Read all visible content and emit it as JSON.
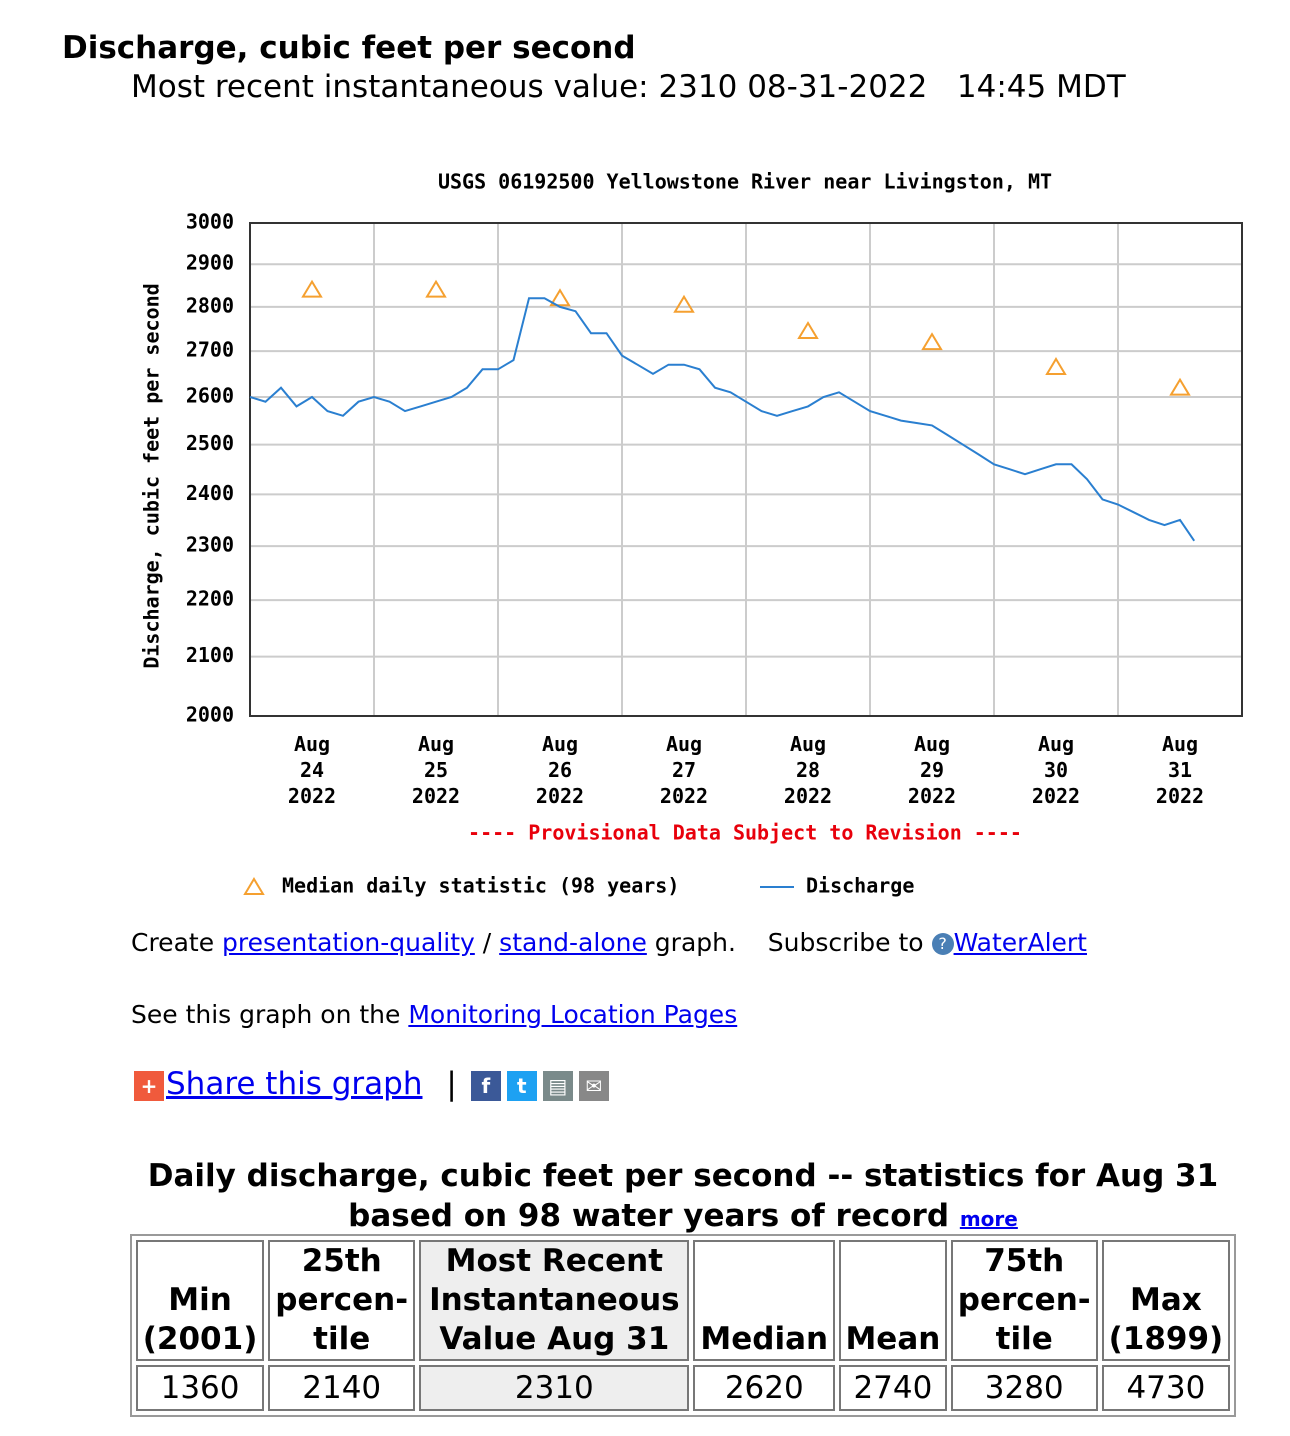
{
  "header": {
    "title": "Discharge, cubic feet per second",
    "subtitle": "Most recent instantaneous value: 2310 08-31-2022   14:45 MDT"
  },
  "chart_data": {
    "type": "line",
    "title": "USGS 06192500 Yellowstone River near Livingston, MT",
    "ylabel": "Discharge, cubic feet per second",
    "note": "---- Provisional Data Subject to Revision ----",
    "yscale": "log",
    "ylim": [
      2000,
      3000
    ],
    "yticks": [
      2000,
      2100,
      2200,
      2300,
      2400,
      2500,
      2600,
      2700,
      2800,
      2900,
      3000
    ],
    "xlim": [
      "2022-08-24T00:00",
      "2022-09-01T00:00"
    ],
    "xticks": [
      {
        "value": "2022-08-24T00:00",
        "label": "Aug 24 2022"
      },
      {
        "value": "2022-08-25T00:00",
        "label": "Aug 25 2022"
      },
      {
        "value": "2022-08-26T00:00",
        "label": "Aug 26 2022"
      },
      {
        "value": "2022-08-27T00:00",
        "label": "Aug 27 2022"
      },
      {
        "value": "2022-08-28T00:00",
        "label": "Aug 28 2022"
      },
      {
        "value": "2022-08-29T00:00",
        "label": "Aug 29 2022"
      },
      {
        "value": "2022-08-30T00:00",
        "label": "Aug 30 2022"
      },
      {
        "value": "2022-08-31T00:00",
        "label": "Aug 31 2022"
      }
    ],
    "grid": true,
    "series": [
      {
        "name": "Median daily statistic (98 years)",
        "color": "#f5a030",
        "marker": "triangle",
        "x": [
          "2022-08-24T12:00",
          "2022-08-25T12:00",
          "2022-08-26T12:00",
          "2022-08-27T12:00",
          "2022-08-28T12:00",
          "2022-08-29T12:00",
          "2022-08-30T12:00",
          "2022-08-31T12:00"
        ],
        "values": [
          2840,
          2840,
          2820,
          2805,
          2745,
          2720,
          2665,
          2620
        ]
      },
      {
        "name": "Discharge",
        "color": "#2a7fd0",
        "marker": "line",
        "x": [
          "2022-08-24T00:00",
          "2022-08-24T03:00",
          "2022-08-24T06:00",
          "2022-08-24T09:00",
          "2022-08-24T12:00",
          "2022-08-24T15:00",
          "2022-08-24T18:00",
          "2022-08-24T21:00",
          "2022-08-25T00:00",
          "2022-08-25T03:00",
          "2022-08-25T06:00",
          "2022-08-25T09:00",
          "2022-08-25T12:00",
          "2022-08-25T15:00",
          "2022-08-25T18:00",
          "2022-08-25T21:00",
          "2022-08-26T00:00",
          "2022-08-26T03:00",
          "2022-08-26T06:00",
          "2022-08-26T09:00",
          "2022-08-26T12:00",
          "2022-08-26T15:00",
          "2022-08-26T18:00",
          "2022-08-26T21:00",
          "2022-08-27T00:00",
          "2022-08-27T03:00",
          "2022-08-27T06:00",
          "2022-08-27T09:00",
          "2022-08-27T12:00",
          "2022-08-27T15:00",
          "2022-08-27T18:00",
          "2022-08-27T21:00",
          "2022-08-28T00:00",
          "2022-08-28T03:00",
          "2022-08-28T06:00",
          "2022-08-28T09:00",
          "2022-08-28T12:00",
          "2022-08-28T15:00",
          "2022-08-28T18:00",
          "2022-08-28T21:00",
          "2022-08-29T00:00",
          "2022-08-29T03:00",
          "2022-08-29T06:00",
          "2022-08-29T09:00",
          "2022-08-29T12:00",
          "2022-08-29T15:00",
          "2022-08-29T18:00",
          "2022-08-29T21:00",
          "2022-08-30T00:00",
          "2022-08-30T03:00",
          "2022-08-30T06:00",
          "2022-08-30T09:00",
          "2022-08-30T12:00",
          "2022-08-30T15:00",
          "2022-08-30T18:00",
          "2022-08-30T21:00",
          "2022-08-31T00:00",
          "2022-08-31T03:00",
          "2022-08-31T06:00",
          "2022-08-31T09:00",
          "2022-08-31T12:00",
          "2022-08-31T14:45"
        ],
        "values": [
          2600,
          2590,
          2620,
          2580,
          2600,
          2570,
          2560,
          2590,
          2600,
          2590,
          2570,
          2580,
          2590,
          2600,
          2620,
          2660,
          2660,
          2680,
          2820,
          2820,
          2800,
          2790,
          2740,
          2740,
          2690,
          2670,
          2650,
          2670,
          2670,
          2660,
          2620,
          2610,
          2590,
          2570,
          2560,
          2570,
          2580,
          2600,
          2610,
          2590,
          2570,
          2560,
          2550,
          2545,
          2540,
          2520,
          2500,
          2480,
          2460,
          2450,
          2440,
          2450,
          2460,
          2460,
          2430,
          2390,
          2380,
          2365,
          2350,
          2340,
          2350,
          2310
        ]
      }
    ]
  },
  "links": {
    "create": "Create",
    "presentation": "presentation-quality",
    "slash": "/",
    "standalone": "stand-alone",
    "graph": "graph.",
    "subscribe": "Subscribe to",
    "wateralert": "WaterAlert",
    "see": "See this graph on the",
    "monitoring": "Monitoring Location Pages",
    "share": "Share this graph",
    "separator": "|"
  },
  "stats": {
    "title": "Daily discharge, cubic feet per second -- statistics for Aug 31 based on 98 water years of record",
    "more": "more",
    "headers": [
      "Min\n(2001)",
      "25th\npercen-\ntile",
      "Most Recent\nInstantaneous\nValue Aug 31",
      "Median",
      "Mean",
      "75th\npercen-\ntile",
      "Max\n(1899)"
    ],
    "values": [
      1360,
      2140,
      2310,
      2620,
      2740,
      3280,
      4730
    ]
  }
}
